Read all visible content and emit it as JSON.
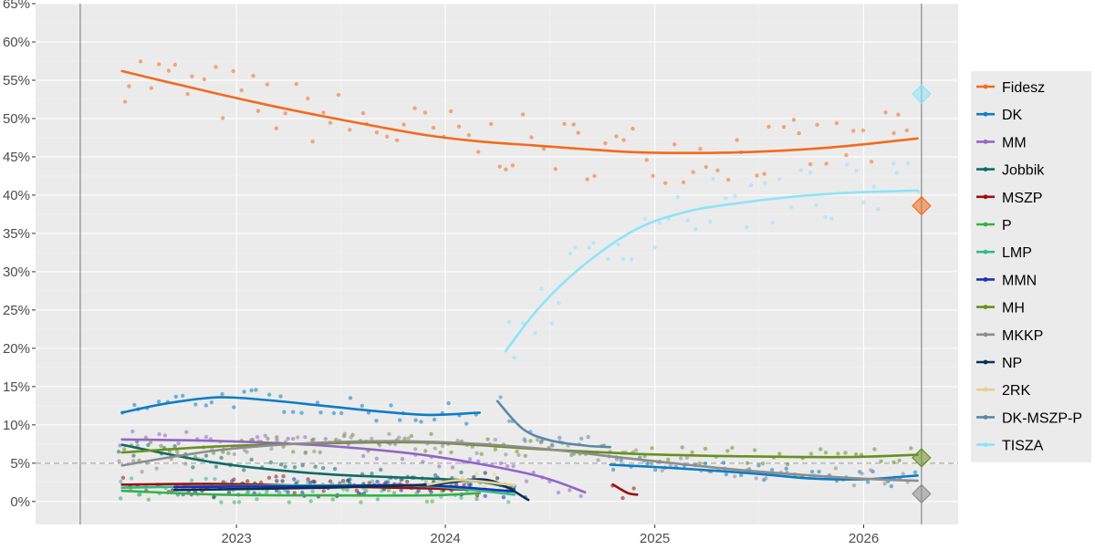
{
  "chart_data": {
    "type": "line",
    "title": "",
    "xlabel": "",
    "ylabel": "",
    "x_range": [
      "2022-04-03",
      "2026-04-12"
    ],
    "xlim": [
      "2022-01-15",
      "2026-06-15"
    ],
    "ylim": [
      -3,
      65
    ],
    "y_ticks": [
      0,
      5,
      10,
      15,
      20,
      25,
      30,
      35,
      40,
      45,
      50,
      55,
      60,
      65
    ],
    "y_tick_labels": [
      "0%",
      "5%",
      "10%",
      "15%",
      "20%",
      "25%",
      "30%",
      "35%",
      "40%",
      "45%",
      "50%",
      "55%",
      "60%",
      "65%"
    ],
    "x_ticks": [
      "2023-01-01",
      "2024-01-01",
      "2025-01-01",
      "2026-01-01"
    ],
    "x_tick_labels": [
      "2023",
      "2024",
      "2025",
      "2026"
    ],
    "threshold": 5,
    "grid": true,
    "legend_position": "right",
    "series": [
      {
        "name": "Fidesz",
        "color": "#f26b1d",
        "x": [
          "2022-06-15",
          "2022-09-01",
          "2022-12-01",
          "2023-03-01",
          "2023-06-01",
          "2023-09-01",
          "2023-12-01",
          "2024-03-01",
          "2024-06-01",
          "2024-09-01",
          "2024-12-01",
          "2025-03-01",
          "2025-06-01",
          "2025-09-01",
          "2025-12-01",
          "2026-04-05"
        ],
        "y": [
          56.2,
          54.8,
          53.2,
          51.7,
          50.3,
          49.0,
          47.8,
          47.0,
          46.5,
          46.0,
          45.6,
          45.5,
          45.6,
          45.9,
          46.4,
          47.4
        ],
        "results": {
          "x": [
            "2026-04-12"
          ],
          "y": [
            38.6
          ]
        }
      },
      {
        "name": "DK",
        "color": "#0c7dc5",
        "x": [
          "2022-06-15",
          "2022-09-01",
          "2022-12-01",
          "2023-03-01",
          "2023-06-01",
          "2023-09-01",
          "2023-12-01",
          "2024-03-01"
        ],
        "y": [
          11.6,
          12.8,
          13.6,
          13.2,
          12.5,
          11.8,
          11.3,
          11.6
        ],
        "x2": [
          "2024-10-15",
          "2025-01-01",
          "2025-04-01",
          "2025-07-01",
          "2025-10-01",
          "2026-01-01",
          "2026-04-05"
        ],
        "y2": [
          4.8,
          4.5,
          4.1,
          3.6,
          3.0,
          2.9,
          3.4
        ]
      },
      {
        "name": "MM",
        "color": "#9166c4",
        "x": [
          "2022-06-15",
          "2022-12-01",
          "2023-06-01",
          "2023-12-01",
          "2024-06-01",
          "2024-09-01"
        ],
        "y": [
          8.1,
          7.9,
          7.3,
          6.0,
          3.5,
          1.2
        ]
      },
      {
        "name": "Jobbik",
        "color": "#0e6b64",
        "x": [
          "2022-06-15",
          "2022-12-01",
          "2023-06-01",
          "2023-12-01",
          "2024-03-01",
          "2024-05-01"
        ],
        "y": [
          7.4,
          5.0,
          3.6,
          3.0,
          2.6,
          1.6
        ]
      },
      {
        "name": "MSZP",
        "color": "#9b1010",
        "x": [
          "2022-06-15",
          "2022-12-01",
          "2023-06-01",
          "2023-12-01",
          "2024-03-01"
        ],
        "y": [
          2.2,
          2.3,
          2.0,
          1.7,
          1.5
        ],
        "x2": [
          "2024-10-20",
          "2024-11-15",
          "2024-12-01"
        ],
        "y2": [
          2.2,
          1.1,
          0.9
        ]
      },
      {
        "name": "P",
        "color": "#36b04a",
        "x": [
          "2022-06-15",
          "2022-12-01",
          "2023-06-01",
          "2023-12-01",
          "2024-03-01"
        ],
        "y": [
          1.4,
          0.9,
          0.8,
          0.8,
          1.1
        ]
      },
      {
        "name": "LMP",
        "color": "#2ebc86",
        "x": [
          "2022-06-15",
          "2022-12-01",
          "2023-06-01",
          "2023-12-01",
          "2024-05-01"
        ],
        "y": [
          1.8,
          2.0,
          2.1,
          2.0,
          0.9
        ]
      },
      {
        "name": "MMN",
        "color": "#1c2fb5",
        "x": [
          "2022-09-15",
          "2023-06-01",
          "2023-12-01",
          "2024-05-01"
        ],
        "y": [
          1.9,
          2.0,
          2.1,
          1.3
        ]
      },
      {
        "name": "MH",
        "color": "#6a8f22",
        "x": [
          "2022-06-15",
          "2022-12-01",
          "2023-06-01",
          "2023-12-01",
          "2024-06-01",
          "2024-12-01",
          "2025-06-01",
          "2025-12-01",
          "2026-04-05"
        ],
        "y": [
          6.4,
          7.2,
          7.6,
          7.7,
          6.9,
          6.2,
          5.9,
          5.8,
          6.1
        ],
        "results": {
          "x": [
            "2026-04-12"
          ],
          "y": [
            5.7
          ]
        }
      },
      {
        "name": "MKKP",
        "color": "#8d8d8d",
        "x": [
          "2022-06-15",
          "2022-12-01",
          "2023-06-01",
          "2023-12-01",
          "2024-06-01",
          "2024-12-01",
          "2025-06-01",
          "2025-12-01",
          "2026-04-05"
        ],
        "y": [
          4.7,
          6.7,
          7.7,
          7.8,
          7.0,
          5.5,
          4.1,
          3.1,
          2.7
        ],
        "results": {
          "x": [
            "2026-04-12"
          ],
          "y": [
            1.0
          ]
        }
      },
      {
        "name": "NP",
        "color": "#0b2e52",
        "x": [
          "2022-09-15",
          "2023-06-01",
          "2023-12-01",
          "2024-03-15",
          "2024-05-25"
        ],
        "y": [
          1.5,
          1.8,
          2.2,
          2.8,
          0.2
        ]
      },
      {
        "name": "2RK",
        "color": "#e8cf8f",
        "x": [
          "2023-12-01",
          "2024-02-01",
          "2024-05-01"
        ],
        "y": [
          2.2,
          2.8,
          2.1
        ]
      },
      {
        "name": "DK-MSZP-P",
        "color": "#5a88ac",
        "x": [
          "2024-04-01",
          "2024-05-15",
          "2024-07-01",
          "2024-09-01",
          "2024-10-15"
        ],
        "y": [
          13.1,
          9.5,
          8.0,
          7.3,
          7.1
        ]
      },
      {
        "name": "TISZA",
        "color": "#8fe3f8",
        "x": [
          "2024-04-15",
          "2024-06-15",
          "2024-09-01",
          "2024-12-01",
          "2025-03-01",
          "2025-06-01",
          "2025-09-01",
          "2025-12-01",
          "2026-04-05"
        ],
        "y": [
          19.6,
          25.5,
          31.0,
          35.6,
          37.9,
          39.0,
          39.8,
          40.3,
          40.6
        ],
        "results": {
          "x": [
            "2026-04-12"
          ],
          "y": [
            53.2
          ]
        }
      }
    ]
  }
}
